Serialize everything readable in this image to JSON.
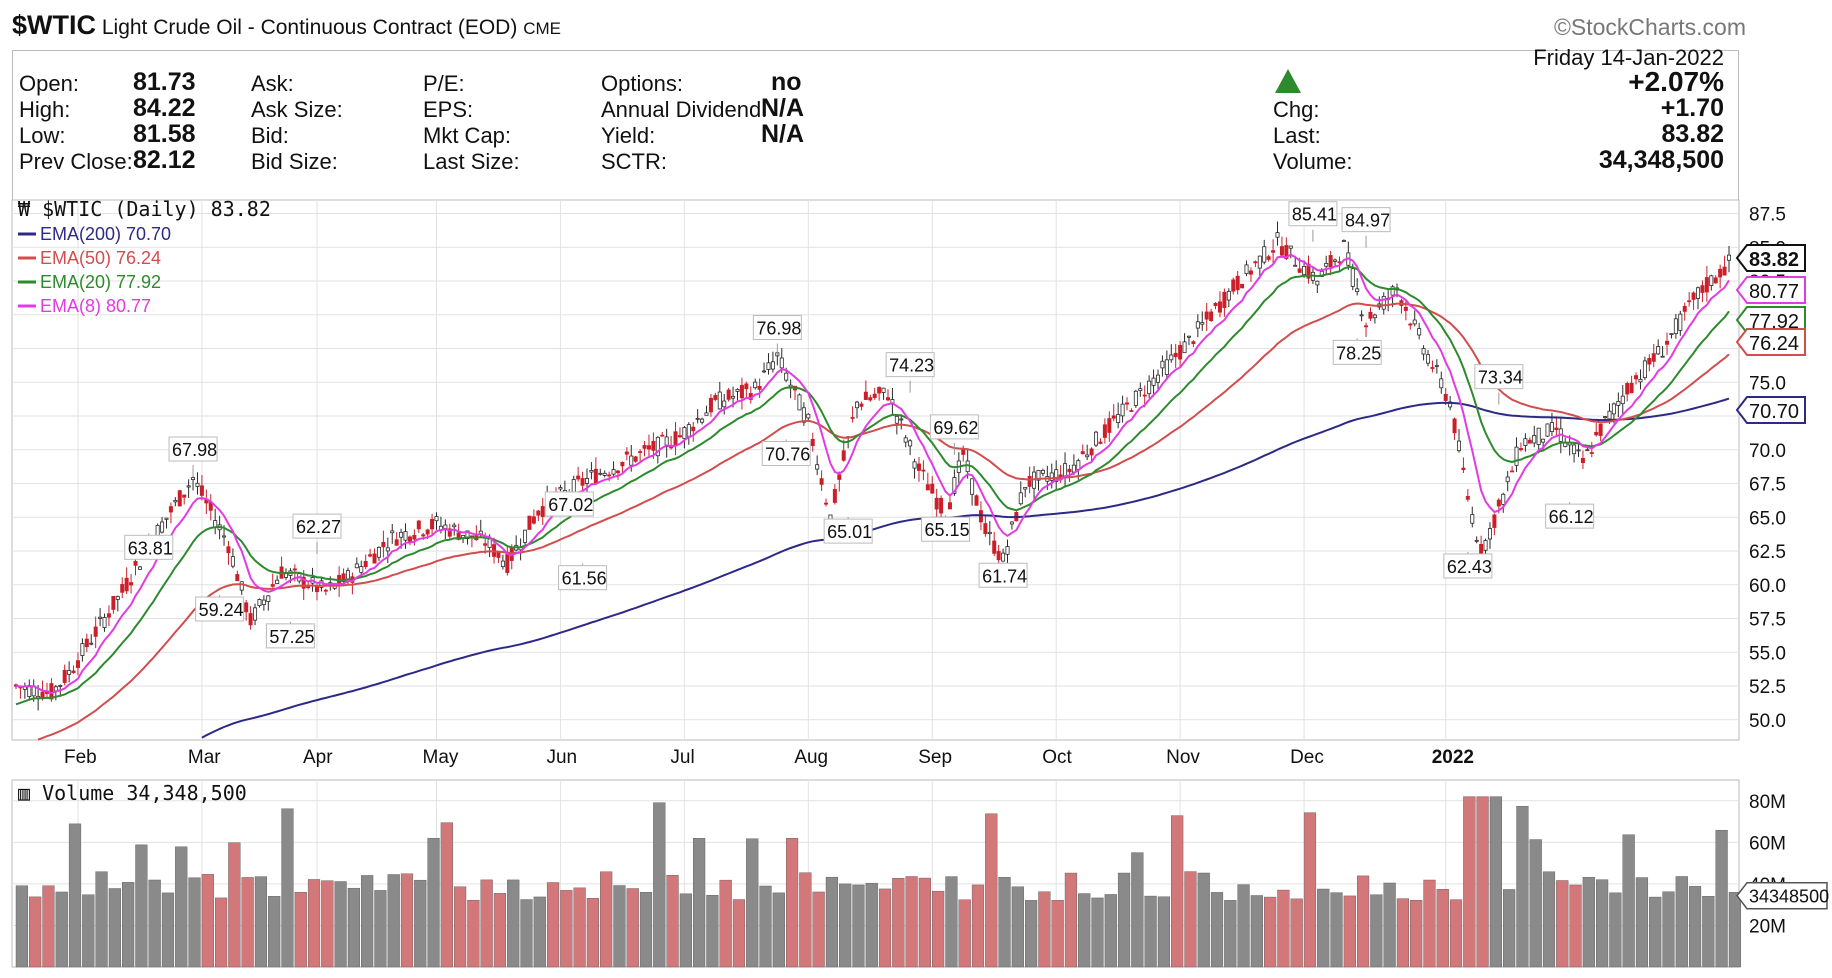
{
  "header": {
    "symbol": "$WTIC",
    "description": "Light Crude Oil - Continuous Contract (EOD)",
    "exchange": "CME",
    "brand": "©StockCharts.com"
  },
  "quote": {
    "open_label": "Open:",
    "open": "81.73",
    "high_label": "High:",
    "high": "84.22",
    "low_label": "Low:",
    "low": "81.58",
    "prev_close_label": "Prev Close:",
    "prev_close": "82.12",
    "ask_label": "Ask:",
    "ask_size_label": "Ask Size:",
    "bid_label": "Bid:",
    "bid_size_label": "Bid Size:",
    "pe_label": "P/E:",
    "eps_label": "EPS:",
    "mkt_cap_label": "Mkt Cap:",
    "last_size_label": "Last Size:",
    "options_label": "Options:",
    "options": "no",
    "annual_dividend_label": "Annual Dividend:",
    "annual_dividend": "N/A",
    "yield_label": "Yield:",
    "yield": "N/A",
    "sctr_label": "SCTR:",
    "date": "Friday  14-Jan-2022",
    "change_pct": "+2.07%",
    "chg_label": "Chg:",
    "chg": "+1.70",
    "last_label": "Last:",
    "last": "83.82",
    "volume_label": "Volume:",
    "volume": "34,348,500"
  },
  "legend": {
    "main": "$WTIC (Daily) 83.82",
    "ema200": "EMA(200) 70.70",
    "ema50": "EMA(50) 76.24",
    "ema20": "EMA(20) 77.92",
    "ema8": "EMA(8) 80.77",
    "volume": "Volume 34,348,500"
  },
  "colors": {
    "up": "#2a2a2a",
    "down": "#cc1f2a",
    "ema200": "#2c2a86",
    "ema50": "#d24d4d",
    "ema20": "#2d8a2d",
    "ema8": "#e33be3",
    "vol_up": "#8a8a8a",
    "vol_down": "#d2787a",
    "grid": "#e2e2e2",
    "up_arrow": "#2d8a2d"
  },
  "chart_data": {
    "type": "line",
    "x_labels": [
      "Feb",
      "Mar",
      "Apr",
      "May",
      "Jun",
      "Jul",
      "Aug",
      "Sep",
      "Oct",
      "Nov",
      "Dec",
      "2022"
    ],
    "y_ticks": [
      50.0,
      52.5,
      55.0,
      57.5,
      60.0,
      62.5,
      65.0,
      67.5,
      70.0,
      72.5,
      75.0,
      77.5,
      80.0,
      82.5,
      85.0,
      87.5
    ],
    "ylim": [
      48.5,
      88.5
    ],
    "price_path": [
      [
        0,
        52.5
      ],
      [
        8,
        52.0
      ],
      [
        12,
        53.5
      ],
      [
        24,
        59.5
      ],
      [
        31,
        63.5
      ],
      [
        40,
        67.9
      ],
      [
        48,
        63.0
      ],
      [
        53,
        57.3
      ],
      [
        60,
        61.0
      ],
      [
        70,
        59.5
      ],
      [
        75,
        60.5
      ],
      [
        85,
        63.5
      ],
      [
        95,
        64.5
      ],
      [
        106,
        63.2
      ],
      [
        111,
        61.6
      ],
      [
        118,
        65.5
      ],
      [
        130,
        68.0
      ],
      [
        140,
        69.5
      ],
      [
        150,
        71.0
      ],
      [
        158,
        73.5
      ],
      [
        167,
        74.5
      ],
      [
        172,
        76.9
      ],
      [
        179,
        72.0
      ],
      [
        184,
        65.0
      ],
      [
        190,
        73.5
      ],
      [
        197,
        74.2
      ],
      [
        204,
        68.5
      ],
      [
        210,
        65.2
      ],
      [
        214,
        69.6
      ],
      [
        219,
        64.0
      ],
      [
        223,
        61.8
      ],
      [
        228,
        67.5
      ],
      [
        238,
        68.5
      ],
      [
        245,
        71.0
      ],
      [
        255,
        74.5
      ],
      [
        265,
        78.0
      ],
      [
        275,
        82.0
      ],
      [
        285,
        85.4
      ],
      [
        294,
        82.5
      ],
      [
        300,
        85.0
      ],
      [
        305,
        79.5
      ],
      [
        312,
        82.0
      ],
      [
        317,
        78.3
      ],
      [
        324,
        73.5
      ],
      [
        328,
        66.5
      ],
      [
        331,
        62.4
      ],
      [
        336,
        66.5
      ],
      [
        340,
        70.5
      ],
      [
        348,
        71.5
      ],
      [
        354,
        69.0
      ],
      [
        358,
        71.5
      ],
      [
        364,
        74.5
      ],
      [
        372,
        77.5
      ],
      [
        380,
        81.5
      ],
      [
        387,
        83.82
      ]
    ],
    "annotations": [
      [
        40,
        67.98
      ],
      [
        30,
        63.81
      ],
      [
        46,
        59.24
      ],
      [
        68,
        62.27
      ],
      [
        62,
        57.25
      ],
      [
        125,
        67.02
      ],
      [
        128,
        61.56
      ],
      [
        172,
        76.98
      ],
      [
        174,
        70.76
      ],
      [
        188,
        65.01
      ],
      [
        202,
        74.23
      ],
      [
        212,
        69.62
      ],
      [
        210,
        65.15
      ],
      [
        223,
        61.74
      ],
      [
        293,
        85.41
      ],
      [
        305,
        84.97
      ],
      [
        303,
        78.25
      ],
      [
        335,
        73.34
      ],
      [
        328,
        62.43
      ],
      [
        351,
        66.12
      ]
    ],
    "last_value": 83.82,
    "series": [
      {
        "name": "EMA(200)",
        "end_value": 70.7
      },
      {
        "name": "EMA(50)",
        "end_value": 76.24
      },
      {
        "name": "EMA(20)",
        "end_value": 77.92
      },
      {
        "name": "EMA(8)",
        "end_value": 80.77
      }
    ],
    "volume": {
      "y_ticks": [
        "20M",
        "40M",
        "60M",
        "80M"
      ],
      "last": "34348500"
    }
  }
}
